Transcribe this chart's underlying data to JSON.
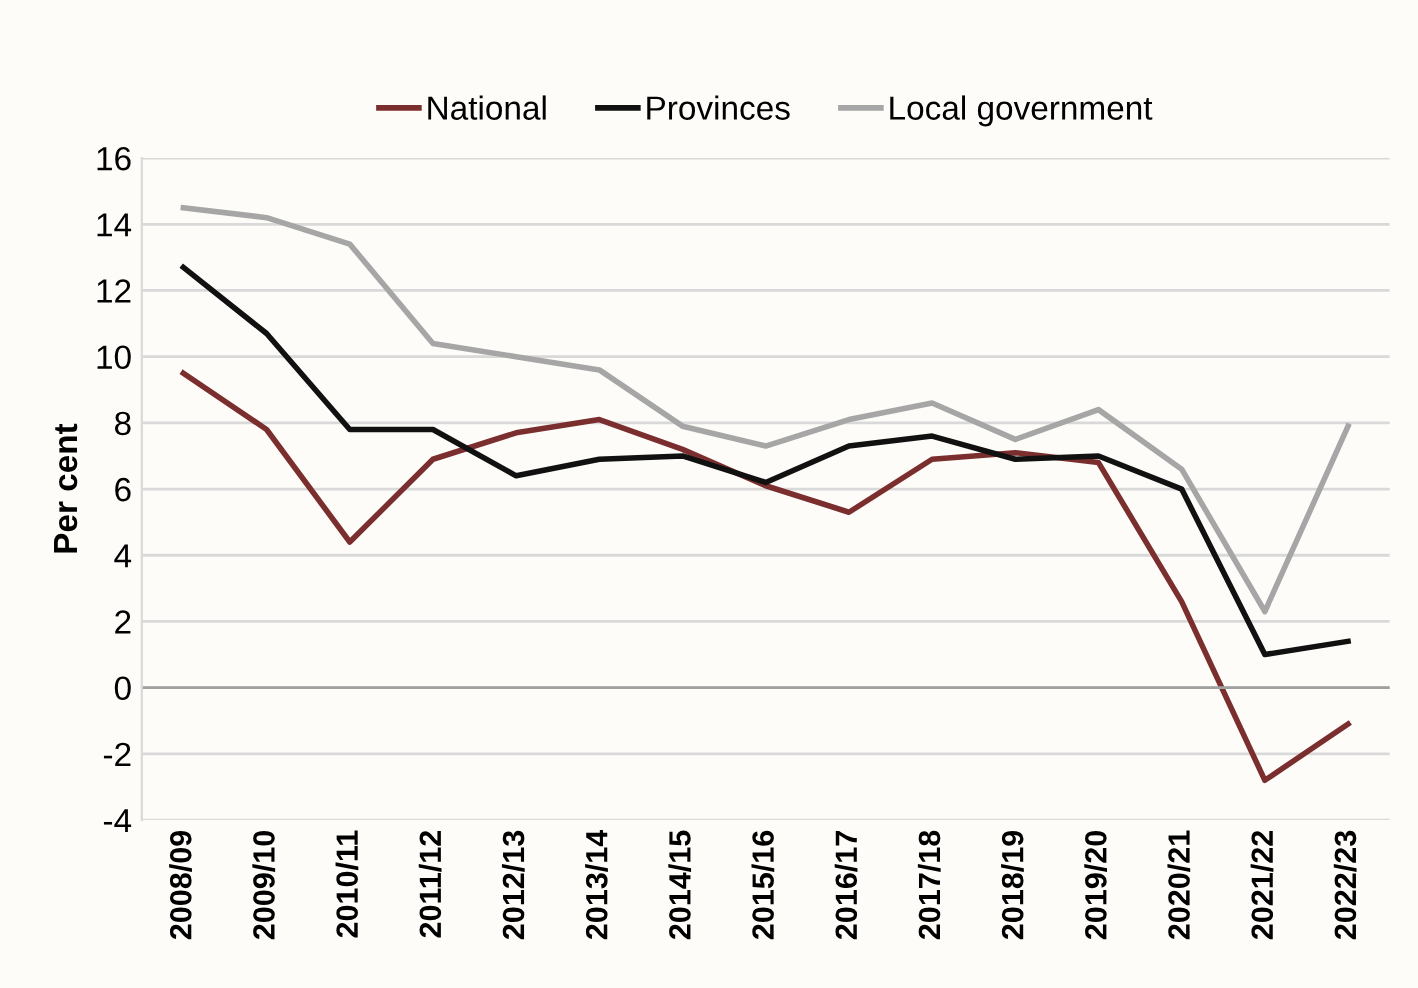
{
  "chart_data": {
    "type": "line",
    "ylabel": "Per cent",
    "categories": [
      "2008/09",
      "2009/10",
      "2010/11",
      "2011/12",
      "2012/13",
      "2013/14",
      "2014/15",
      "2015/16",
      "2016/17",
      "2017/18",
      "2018/19",
      "2019/20",
      "2020/21",
      "2021/22",
      "2022/23"
    ],
    "series": [
      {
        "name": "National",
        "color": "#7b2e2e",
        "values": [
          9.5,
          7.8,
          4.4,
          6.9,
          7.7,
          8.1,
          7.2,
          6.1,
          5.3,
          6.9,
          7.1,
          6.8,
          2.6,
          -2.8,
          -1.1
        ]
      },
      {
        "name": "Provinces",
        "color": "#111111",
        "values": [
          12.7,
          10.7,
          7.8,
          7.8,
          6.4,
          6.9,
          7.0,
          6.2,
          7.3,
          7.6,
          6.9,
          7.0,
          6.0,
          1.0,
          1.4
        ]
      },
      {
        "name": "Local government",
        "color": "#a6a6a6",
        "values": [
          14.5,
          14.2,
          13.4,
          10.4,
          10.0,
          9.6,
          7.9,
          7.3,
          8.1,
          8.6,
          7.5,
          8.4,
          6.6,
          2.3,
          7.9
        ]
      }
    ],
    "ylim": [
      -4,
      16
    ],
    "yticks": [
      -4,
      -2,
      0,
      2,
      4,
      6,
      8,
      10,
      12,
      14,
      16
    ],
    "grid": "y",
    "legend": "top",
    "marker": "none",
    "line_style": "solid"
  }
}
